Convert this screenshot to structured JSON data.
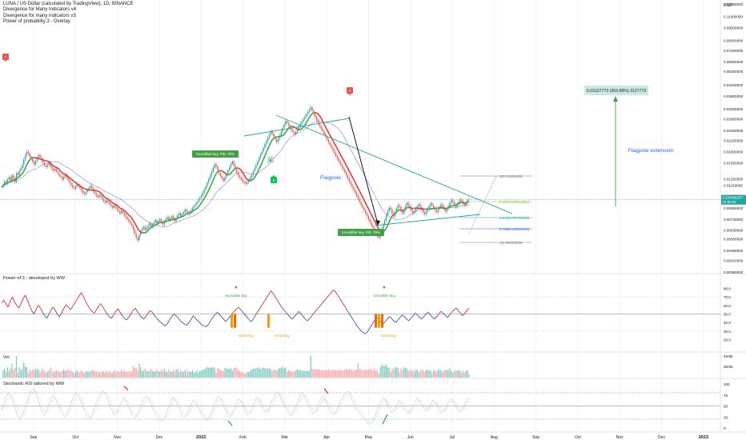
{
  "header": {
    "title": "LUNA / US Dollar (calculated by TradingView), 1D, BINANCE",
    "indicators": [
      "Divergence for Many Indicators v4",
      "Divergence for many indicators v3",
      "Power of probability 3 - Overlay"
    ]
  },
  "chart_data": {
    "type": "line",
    "price_axis": {
      "currency_label": "USD",
      "scale": "log",
      "ticks": [
        "0.13000000",
        "0.11000000",
        "0.09500000",
        "0.08000000",
        "0.07000000",
        "0.06000000",
        "0.05300000",
        "0.04400000",
        "0.03800000",
        "0.03200000",
        "0.02800000",
        "0.02400000",
        "0.02100000",
        "0.01800000",
        "0.01550000",
        "0.01250000",
        "0.01150000",
        "0.01000000",
        "0.00850000",
        "0.00730000",
        "0.00630000",
        "0.00560000",
        "0.00480000",
        "0.00420000",
        "0.00360000"
      ],
      "last_price": "0.00946247",
      "last_price_sub": "01:59:54"
    },
    "time_axis": [
      "Sep",
      "Oct",
      "Nov",
      "Dec",
      "2022",
      "Feb",
      "Mar",
      "Apr",
      "May",
      "Jun",
      "Jul",
      "Aug",
      "Sep",
      "Oct",
      "Nov",
      "Dec",
      "2023"
    ],
    "annotations": {
      "flagpole": "Flagpole",
      "flagpole_extension": "Flagpole extension",
      "target_box": "0.03127773 (353.88%) 3127773",
      "buy_label_1": "Incredible buy, Prb: 79%",
      "buy_label_2": "Incredible buy, Prb: 79%",
      "marker_labels": [
        "7",
        "7",
        "6",
        "5"
      ]
    },
    "fib_levels": [
      {
        "label": "0(0.01345409)",
        "color": "#787b86"
      },
      {
        "label": "0.382(0.00941986)",
        "color": "#9bc53d"
      },
      {
        "label": "0.618(0.00762605)",
        "color": "#26a69a"
      },
      {
        "label": "0.786(0.00654636)",
        "color": "#2962ff"
      },
      {
        "label": "1(0.00538035)",
        "color": "#787b86"
      }
    ],
    "close_series": [
      0.0112,
      0.0116,
      0.0121,
      0.0118,
      0.0124,
      0.0128,
      0.0122,
      0.0131,
      0.0126,
      0.012,
      0.0135,
      0.0132,
      0.0139,
      0.0144,
      0.015,
      0.0162,
      0.0171,
      0.018,
      0.0176,
      0.0169,
      0.0164,
      0.0158,
      0.0152,
      0.0159,
      0.0165,
      0.0172,
      0.0168,
      0.0161,
      0.0155,
      0.015,
      0.0147,
      0.0151,
      0.0156,
      0.0148,
      0.0143,
      0.014,
      0.0144,
      0.0139,
      0.0135,
      0.0131,
      0.0128,
      0.0124,
      0.0129,
      0.0133,
      0.0128,
      0.0123,
      0.0119,
      0.0115,
      0.0112,
      0.011,
      0.0113,
      0.0117,
      0.0114,
      0.0111,
      0.0107,
      0.0104,
      0.0102,
      0.0105,
      0.0108,
      0.0111,
      0.0114,
      0.011,
      0.0106,
      0.0103,
      0.01,
      0.0098,
      0.0101,
      0.0099,
      0.0096,
      0.0093,
      0.0091,
      0.0094,
      0.0092,
      0.0089,
      0.0087,
      0.0085,
      0.0088,
      0.0086,
      0.0083,
      0.0081,
      0.0079,
      0.0082,
      0.008,
      0.0077,
      0.0075,
      0.0073,
      0.0071,
      0.0069,
      0.0067,
      0.0063,
      0.006,
      0.0057,
      0.0055,
      0.0059,
      0.0062,
      0.0064,
      0.0066,
      0.0063,
      0.0065,
      0.0067,
      0.0069,
      0.0066,
      0.0068,
      0.007,
      0.0072,
      0.0069,
      0.0071,
      0.0073,
      0.007,
      0.0068,
      0.0071,
      0.0073,
      0.0075,
      0.0072,
      0.0074,
      0.0076,
      0.0073,
      0.0071,
      0.0074,
      0.0077,
      0.0079,
      0.0076,
      0.0078,
      0.008,
      0.0083,
      0.0081,
      0.0078,
      0.008,
      0.0082,
      0.0085,
      0.0087,
      0.0089,
      0.0092,
      0.0094,
      0.0097,
      0.01,
      0.0104,
      0.0108,
      0.0113,
      0.0119,
      0.0125,
      0.0131,
      0.0138,
      0.0145,
      0.0152,
      0.0148,
      0.0141,
      0.0135,
      0.013,
      0.0126,
      0.0122,
      0.0128,
      0.0134,
      0.014,
      0.0146,
      0.0153,
      0.0158,
      0.015,
      0.0143,
      0.0136,
      0.0131,
      0.0127,
      0.0124,
      0.0121,
      0.0119,
      0.0117,
      0.012,
      0.0123,
      0.0127,
      0.0132,
      0.0138,
      0.0144,
      0.0151,
      0.0158,
      0.0166,
      0.0173,
      0.0181,
      0.019,
      0.0199,
      0.0208,
      0.0217,
      0.0227,
      0.0236,
      0.0229,
      0.022,
      0.0212,
      0.0205,
      0.0214,
      0.0224,
      0.0235,
      0.0248,
      0.0259,
      0.0272,
      0.0265,
      0.0256,
      0.0247,
      0.024,
      0.0233,
      0.0227,
      0.0235,
      0.0244,
      0.0253,
      0.0262,
      0.027,
      0.0279,
      0.0288,
      0.0297,
      0.0306,
      0.0316,
      0.0326,
      0.0312,
      0.0299,
      0.0287,
      0.0275,
      0.0264,
      0.0254,
      0.0245,
      0.0236,
      0.0228,
      0.022,
      0.0212,
      0.0204,
      0.0197,
      0.019,
      0.0183,
      0.0176,
      0.017,
      0.0164,
      0.0158,
      0.0152,
      0.0147,
      0.0142,
      0.0137,
      0.0131,
      0.0126,
      0.0121,
      0.0116,
      0.0112,
      0.0108,
      0.0104,
      0.01,
      0.0096,
      0.0092,
      0.0088,
      0.0085,
      0.0082,
      0.0079,
      0.0076,
      0.0073,
      0.007,
      0.0067,
      0.0065,
      0.0062,
      0.006,
      0.0058,
      0.0057,
      0.006,
      0.0064,
      0.0068,
      0.0072,
      0.0077,
      0.0081,
      0.0085,
      0.0083,
      0.0079,
      0.0076,
      0.008,
      0.0084,
      0.0088,
      0.0086,
      0.0082,
      0.0079,
      0.0083,
      0.0087,
      0.0091,
      0.0088,
      0.0085,
      0.0082,
      0.0079,
      0.0081,
      0.0084,
      0.0087,
      0.0089,
      0.0086,
      0.0083,
      0.008,
      0.0078,
      0.0081,
      0.0084,
      0.0087,
      0.009,
      0.0088,
      0.0085,
      0.0082,
      0.008,
      0.0083,
      0.0086,
      0.0089,
      0.0087,
      0.0084,
      0.0081,
      0.0084,
      0.0087,
      0.0091,
      0.0094,
      0.0092,
      0.0089,
      0.0086,
      0.0089,
      0.0092,
      0.0095,
      0.0093,
      0.009,
      0.0088,
      0.0091,
      0.0094,
      0.0095
    ],
    "rsi_pane": {
      "title": "Power of 3 - developed by WW",
      "ticks": [
        "80.0",
        "70.0",
        "60.0",
        "50.0",
        "40.0",
        "30.0",
        "20.0"
      ],
      "labels": [
        "Incredible buy",
        "Incredible buy",
        "Great buy",
        "Great buy",
        "Great buy"
      ],
      "values": [
        63,
        66,
        62,
        58,
        65,
        70,
        64,
        60,
        57,
        62,
        68,
        72,
        66,
        60,
        54,
        50,
        55,
        60,
        57,
        52,
        48,
        45,
        50,
        55,
        58,
        54,
        49,
        47,
        52,
        57,
        61,
        58,
        55,
        59,
        63,
        67,
        71,
        75,
        70,
        65,
        60,
        56,
        53,
        51,
        55,
        59,
        62,
        58,
        54,
        50,
        47,
        45,
        49,
        53,
        56,
        52,
        48,
        45,
        43,
        46,
        50,
        54,
        57,
        53,
        49,
        46,
        44,
        47,
        51,
        54,
        52,
        48,
        45,
        42,
        40,
        38,
        36,
        39,
        43,
        47,
        50,
        48,
        45,
        42,
        40,
        38,
        37,
        40,
        44,
        48,
        45,
        42,
        40,
        37,
        36,
        35,
        38,
        42,
        46,
        49,
        52,
        50,
        47,
        44,
        41,
        44,
        47,
        50,
        53,
        56,
        58,
        55,
        52,
        49,
        46,
        43,
        41,
        45,
        49,
        53,
        57,
        61,
        65,
        69,
        73,
        77,
        74,
        70,
        66,
        62,
        58,
        55,
        52,
        49,
        46,
        44,
        47,
        50,
        53,
        50,
        47,
        44,
        42,
        45,
        48,
        51,
        54,
        57,
        60,
        63,
        66,
        69,
        72,
        75,
        78,
        76,
        72,
        68,
        64,
        60,
        56,
        52,
        48,
        44,
        40,
        36,
        33,
        30,
        28,
        27,
        30,
        34,
        38,
        42,
        46,
        44,
        41,
        38,
        41,
        44,
        47,
        45,
        42,
        40,
        43,
        46,
        49,
        47,
        44,
        42,
        45,
        48,
        51,
        49,
        46,
        44,
        47,
        50,
        52,
        49,
        46,
        44,
        47,
        50,
        53,
        51,
        48,
        46,
        49,
        52,
        55,
        57,
        54,
        51,
        48,
        51,
        54,
        57
      ]
    },
    "volume_pane": {
      "title": "Vol",
      "ticks": [
        "400M",
        "200M"
      ]
    },
    "stoch_pane": {
      "title": "Stochastic RSI tailored by WW",
      "ticks": [
        "100",
        "75",
        "50",
        "25",
        "0"
      ],
      "k": [
        40,
        55,
        70,
        80,
        72,
        60,
        45,
        30,
        20,
        28,
        42,
        58,
        72,
        85,
        90,
        80,
        65,
        50,
        38,
        30,
        40,
        55,
        68,
        75,
        66,
        52,
        40,
        30,
        24,
        32,
        46,
        60,
        72,
        80,
        74,
        62,
        48,
        35,
        26,
        20,
        30,
        45,
        60,
        72,
        80,
        86,
        78,
        64,
        50,
        38,
        30,
        36,
        48,
        60,
        70,
        62,
        50,
        38,
        28,
        22,
        30,
        42,
        55,
        66,
        74,
        68,
        56,
        44,
        34,
        26,
        20,
        15,
        22,
        34,
        48,
        60,
        70,
        64,
        52,
        40,
        30,
        24,
        30,
        42,
        54,
        64,
        58,
        46,
        36,
        28,
        22,
        18,
        24,
        36,
        50,
        62,
        72,
        66,
        54,
        42,
        32,
        26,
        32,
        44,
        56,
        66,
        60,
        48,
        38,
        30,
        36,
        48,
        60,
        70,
        64,
        52,
        42,
        34,
        40,
        52,
        64,
        74,
        82,
        76,
        64,
        52,
        42,
        34,
        28,
        34,
        46,
        58,
        70,
        80,
        74,
        62,
        50,
        40,
        32,
        38,
        50,
        62,
        72,
        66,
        54,
        44,
        36,
        30,
        36,
        48,
        60,
        70,
        78,
        84,
        78,
        66,
        54,
        44,
        36,
        30,
        24,
        18,
        12,
        8,
        14,
        24,
        36,
        48,
        60,
        70,
        64,
        52,
        42,
        34,
        40,
        52,
        62,
        56,
        46,
        38,
        32,
        38,
        50,
        60,
        68,
        62,
        52,
        44,
        38,
        44,
        54,
        64,
        58,
        48,
        40,
        34,
        40,
        50,
        60,
        66,
        60,
        50,
        42,
        36,
        42,
        52,
        62,
        70
      ]
    }
  }
}
